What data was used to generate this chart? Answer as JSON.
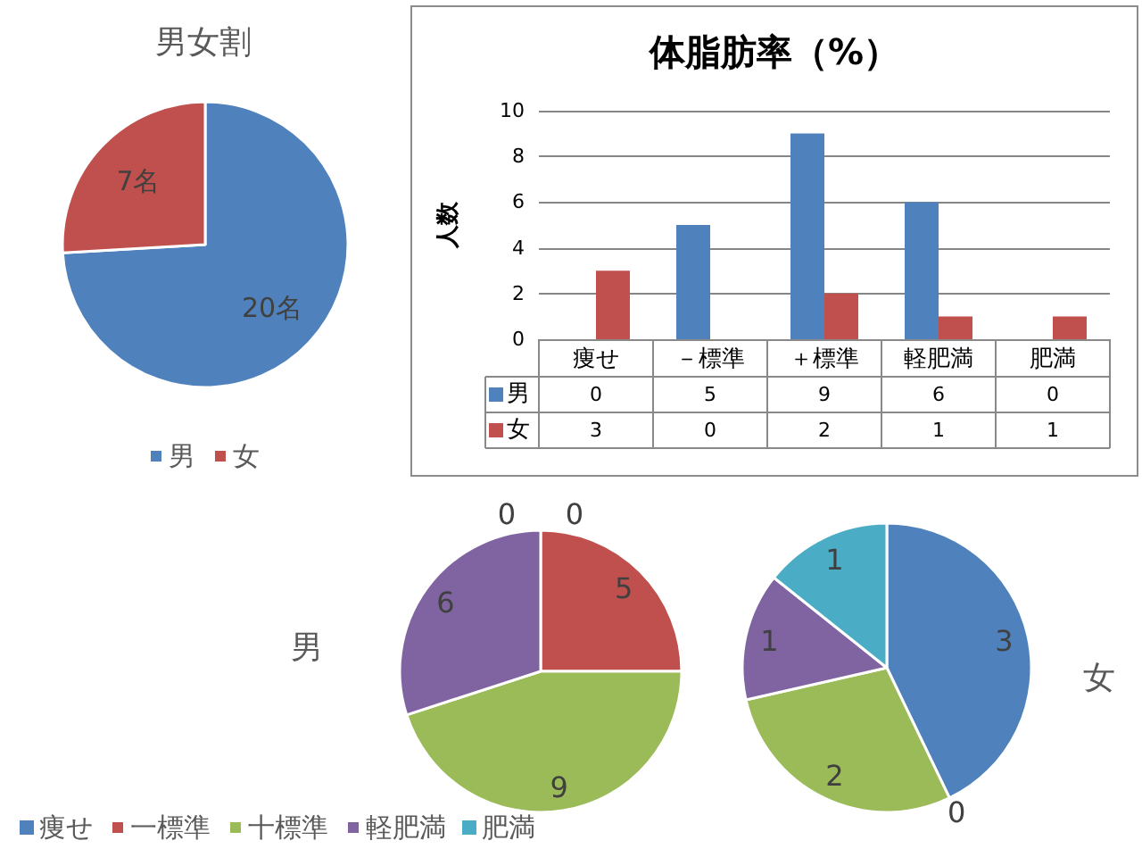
{
  "chart_data": [
    {
      "type": "pie",
      "title": "男女割",
      "categories": [
        "男",
        "女"
      ],
      "values": [
        20,
        7
      ],
      "colors": [
        "#4f81bd",
        "#c0504d"
      ],
      "value_labels": [
        "20名",
        "7名"
      ],
      "legend": "bottom"
    },
    {
      "type": "bar",
      "title": "体脂肪率（%）",
      "ylabel": "人数",
      "categories": [
        "痩せ",
        "－標準",
        "＋標準",
        "軽肥満",
        "肥満"
      ],
      "series": [
        {
          "name": "男",
          "color": "#4f81bd",
          "values": [
            0,
            5,
            9,
            6,
            0
          ]
        },
        {
          "name": "女",
          "color": "#c0504d",
          "values": [
            3,
            0,
            2,
            1,
            1
          ]
        }
      ],
      "ylim": [
        0,
        10
      ],
      "yticks": [
        0,
        2,
        4,
        6,
        8,
        10
      ],
      "grid": "y",
      "data_labels": true,
      "legend": "bottom left"
    },
    {
      "type": "pie",
      "categories": [
        "痩せ",
        "一標準",
        "十標準",
        "軽肥満",
        "肥満"
      ],
      "colors": [
        "#4f81bd",
        "#c0504d",
        "#9bbb59",
        "#8064a2",
        "#4bacc6"
      ],
      "series": [
        {
          "name": "男",
          "values": [
            0,
            5,
            9,
            6,
            0
          ],
          "value_labels": [
            "0",
            "5",
            "9",
            "6",
            "0"
          ]
        },
        {
          "name": "女",
          "values": [
            3,
            0,
            2,
            1,
            1
          ],
          "value_labels": [
            "3",
            "0",
            "2",
            "1",
            "1"
          ]
        }
      ],
      "legend": "bottom left"
    }
  ]
}
